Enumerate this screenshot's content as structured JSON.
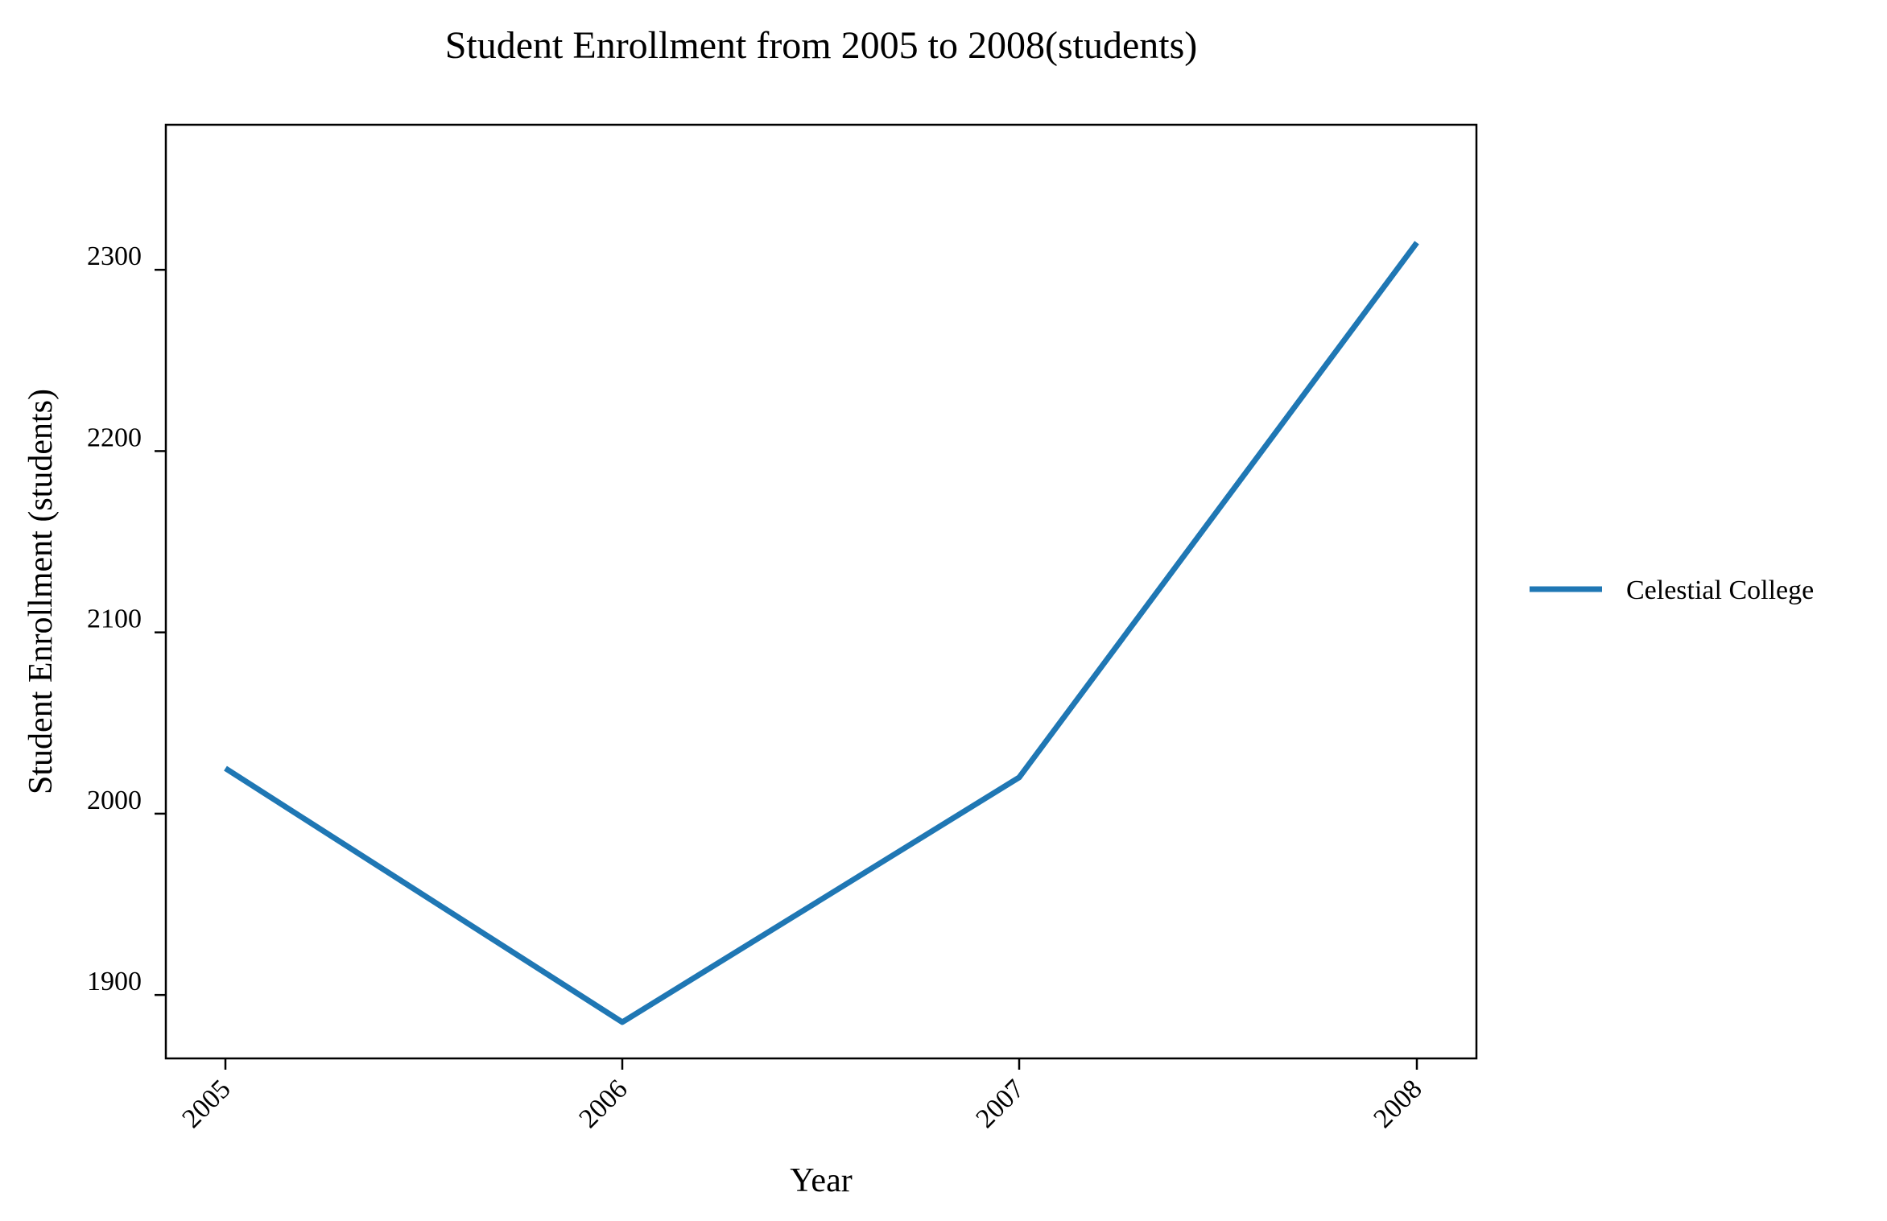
{
  "chart_data": {
    "type": "line",
    "title": "Student Enrollment from 2005 to 2008(students)",
    "xlabel": "Year",
    "ylabel": "Student Enrollment (students)",
    "categories": [
      "2005",
      "2006",
      "2007",
      "2008"
    ],
    "series": [
      {
        "name": "Celestial College",
        "color": "#1f77b4",
        "values": [
          2025,
          1885,
          2020,
          2315
        ]
      }
    ],
    "yticks": [
      1900,
      2000,
      2100,
      2200,
      2300
    ],
    "ylim": [
      1865,
      2380
    ],
    "grid": false,
    "legend_position": "right"
  }
}
